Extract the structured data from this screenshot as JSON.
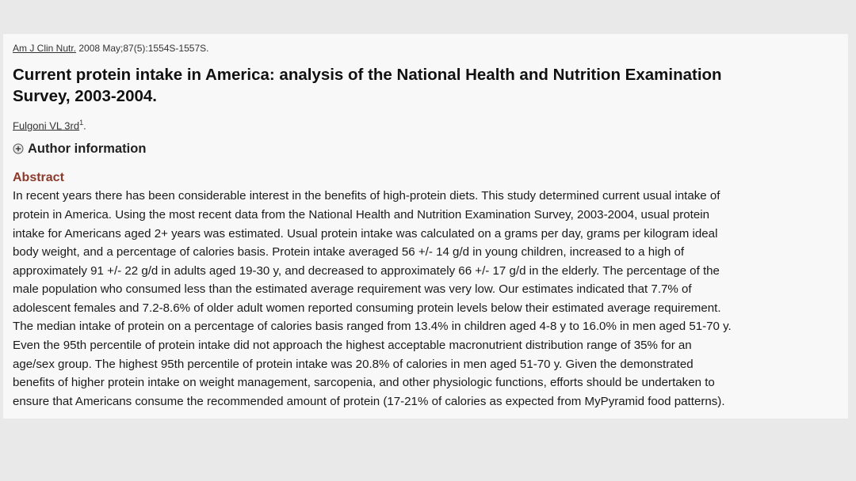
{
  "citation": {
    "journal": "Am J Clin Nutr.",
    "details": " 2008 May;87(5):1554S-1557S."
  },
  "article": {
    "title_line1": "Current protein intake in America: analysis of the National Health and Nutrition Examination",
    "title_line2": "Survey, 2003-2004.",
    "author": "Fulgoni VL 3rd",
    "author_sup": "1",
    "author_suffix": ".",
    "author_info_label": "Author information"
  },
  "abstract": {
    "heading": "Abstract",
    "lines": [
      "In recent years there has been considerable interest in the benefits of high-protein diets. This study determined current usual intake of",
      "protein in America. Using the most recent data from the National Health and Nutrition Examination Survey, 2003-2004, usual protein",
      "intake for Americans aged 2+ years was estimated. Usual protein intake was calculated on a grams per day, grams per kilogram ideal",
      "body weight, and a percentage of calories basis. Protein intake averaged 56 +/- 14 g/d in young children, increased to a high of",
      "approximately 91 +/- 22 g/d in adults aged 19-30 y, and decreased to approximately 66 +/- 17 g/d in the elderly. The percentage of the",
      "male population who consumed less than the estimated average requirement was very low. Our estimates indicated that 7.7% of",
      "adolescent females and 7.2-8.6% of older adult women reported consuming protein levels below their estimated average requirement.",
      "The median intake of protein on a percentage of calories basis ranged from 13.4% in children aged 4-8 y to 16.0% in men aged 51-70 y.",
      "Even the 95th percentile of protein intake did not approach the highest acceptable macronutrient distribution range of 35% for an",
      "age/sex group. The highest 95th percentile of protein intake was 20.8% of calories in men aged 51-70 y. Given the demonstrated",
      "benefits of higher protein intake on weight management, sarcopenia, and other physiologic functions, efforts should be undertaken to",
      "ensure that Americans consume the recommended amount of protein (17-21% of calories as expected from MyPyramid food patterns)."
    ]
  },
  "icons": {
    "expand": "plus-circle-icon"
  }
}
